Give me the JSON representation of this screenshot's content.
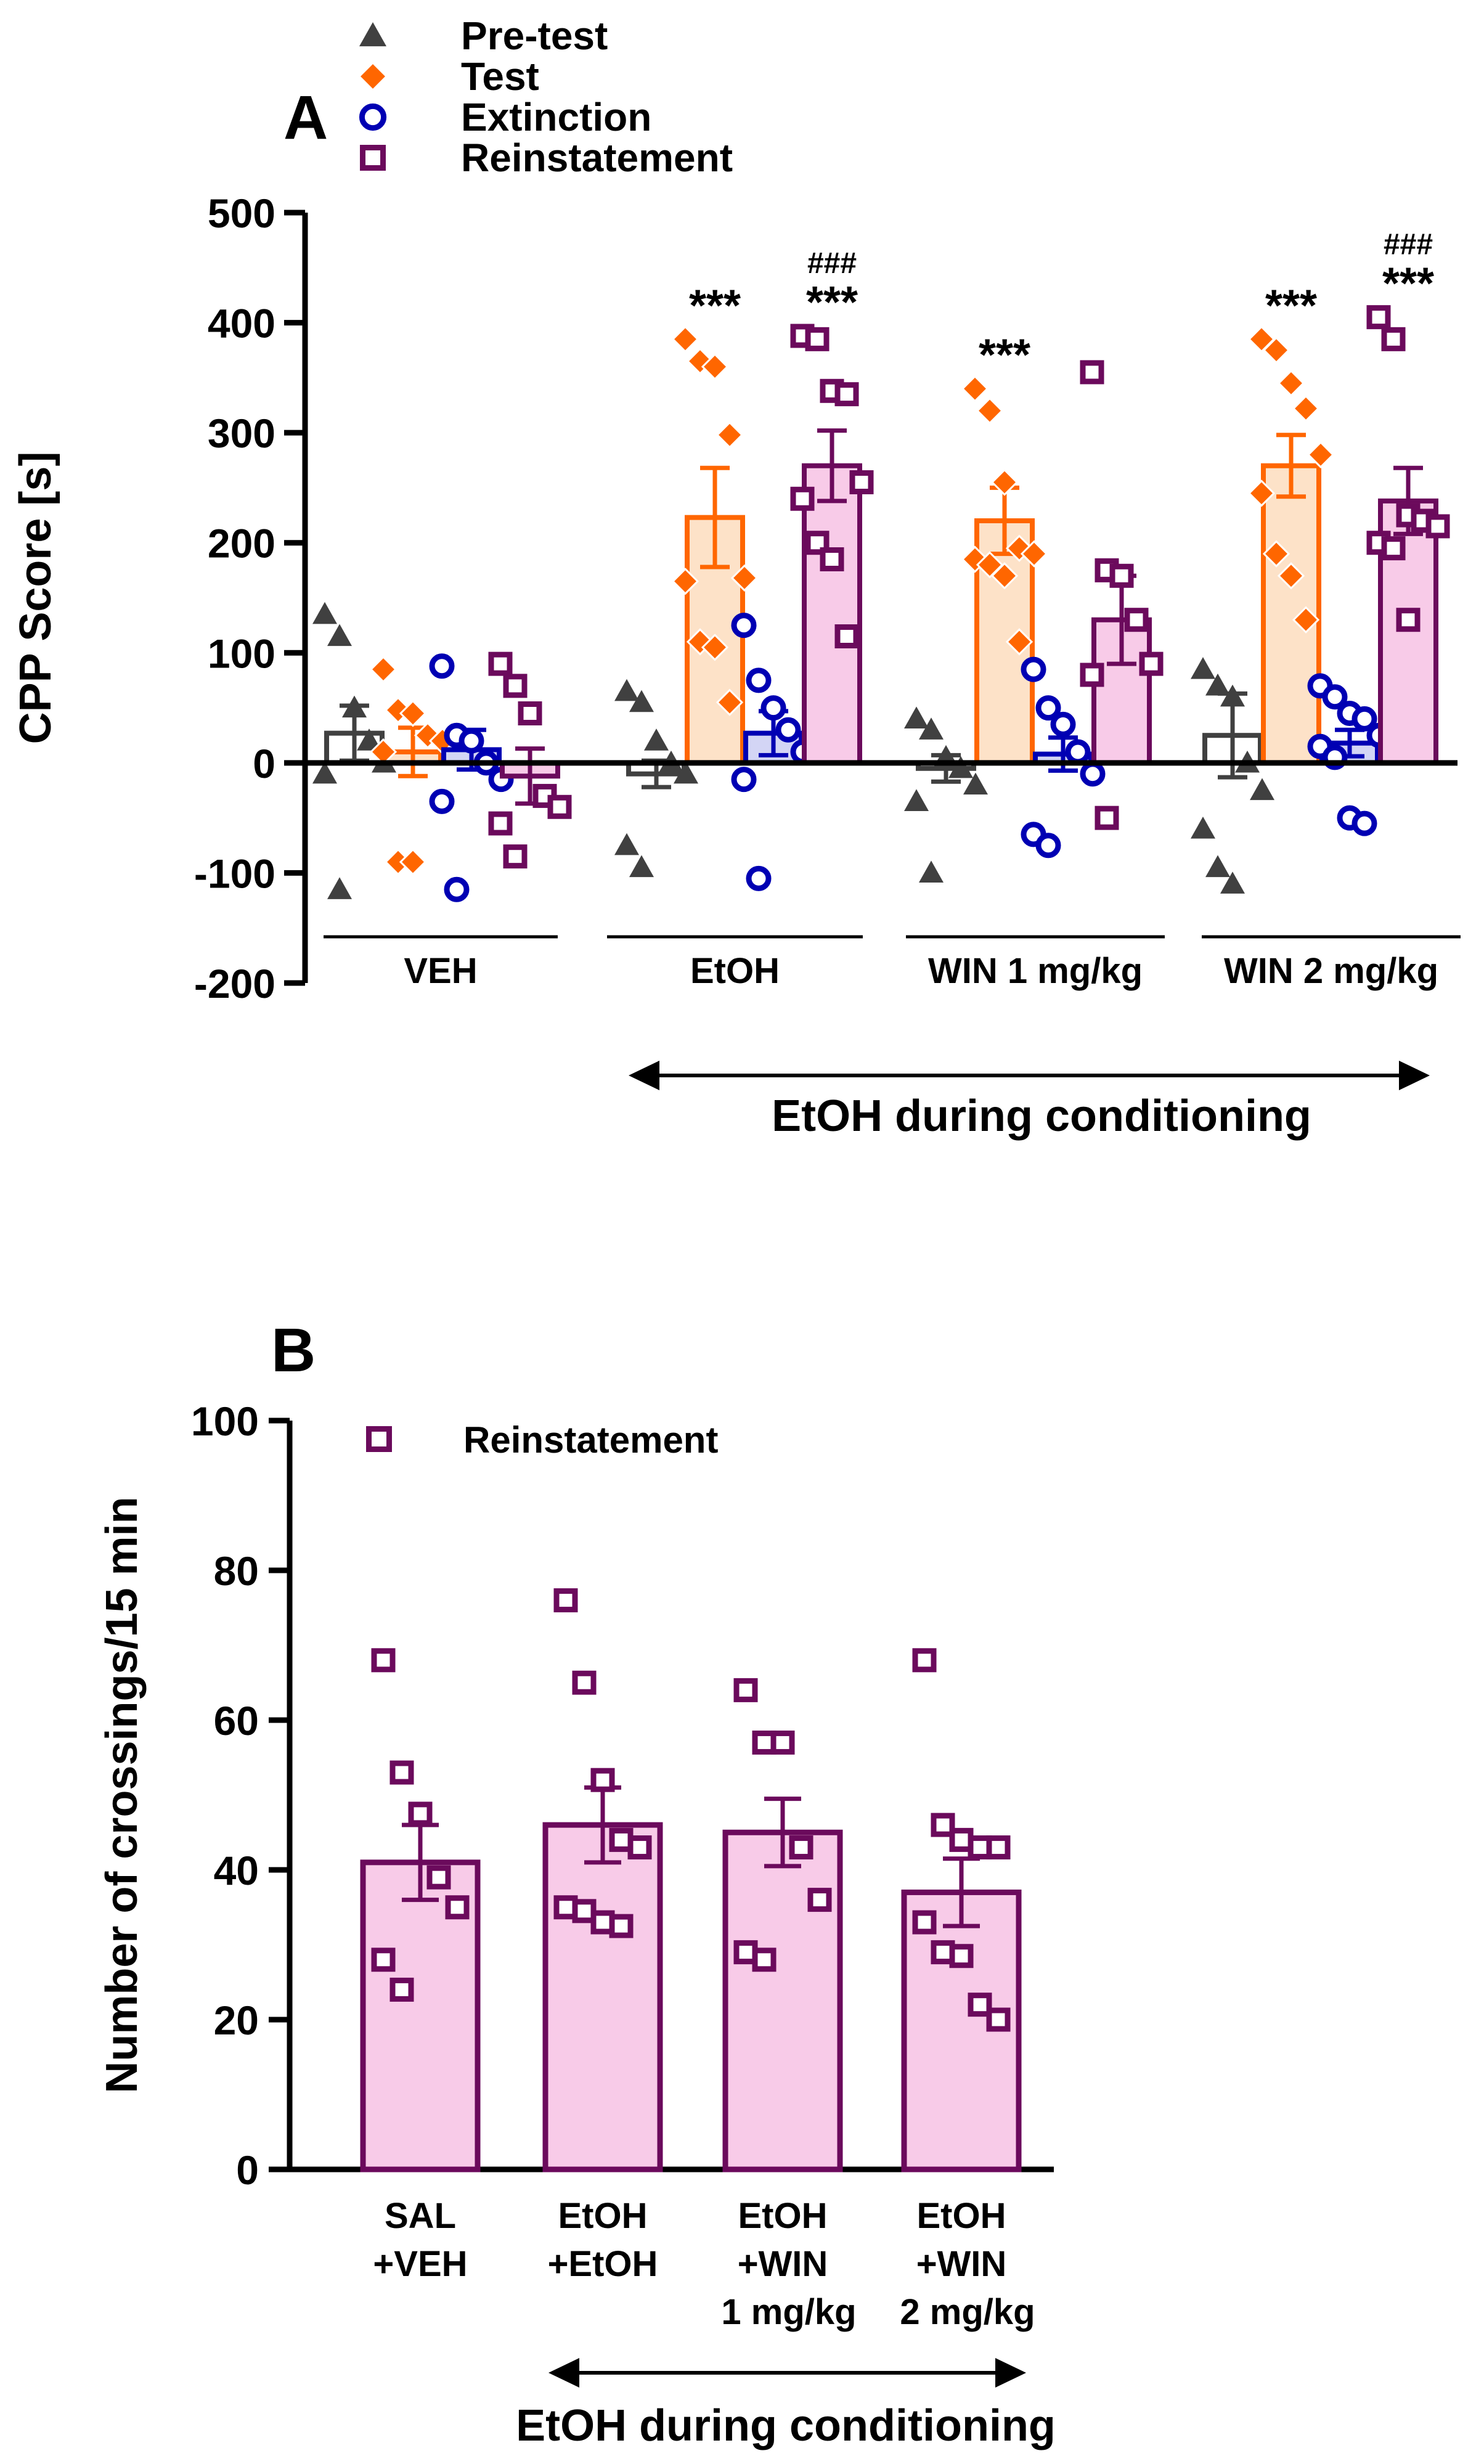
{
  "chart_data": [
    {
      "type": "bar",
      "panel_label": "A",
      "title": "",
      "ylabel": "CPP Score [s]",
      "xlabel": "",
      "ylim": [
        -200,
        500
      ],
      "yticks": [
        "-200",
        "-100",
        "0",
        "100",
        "200",
        "300",
        "400",
        "500"
      ],
      "legend": [
        {
          "name": "Pre-test",
          "symbol": "triangle",
          "color": "#404040"
        },
        {
          "name": "Test",
          "symbol": "diamond",
          "color": "#ff6600"
        },
        {
          "name": "Extinction",
          "symbol": "circle",
          "color": "#0000b3"
        },
        {
          "name": "Reinstatement",
          "symbol": "square",
          "color": "#6b0a5c"
        }
      ],
      "categories": [
        "VEH",
        "EtOH",
        "WIN 1 mg/kg",
        "WIN 2 mg/kg"
      ],
      "series": [
        {
          "name": "Pre-test",
          "color": "#404040",
          "fill": "#ffffff",
          "means": [
            27,
            -10,
            -5,
            25
          ],
          "sems": [
            25,
            12,
            12,
            38
          ],
          "points": [
            [
              135,
              115,
              50,
              20,
              0,
              -10,
              -115
            ],
            [
              65,
              55,
              20,
              0,
              -10,
              -75,
              -95
            ],
            [
              40,
              30,
              5,
              -5,
              -20,
              -35,
              -100
            ],
            [
              85,
              70,
              60,
              0,
              -25,
              -60,
              -95,
              -110
            ]
          ]
        },
        {
          "name": "Test",
          "color": "#ff6600",
          "fill": "#fde2c8",
          "means": [
            10,
            223,
            220,
            270
          ],
          "sems": [
            22,
            45,
            30,
            28
          ],
          "points": [
            [
              85,
              48,
              45,
              25,
              20,
              10,
              -90,
              -90
            ],
            [
              385,
              365,
              360,
              298,
              168,
              165,
              110,
              105,
              55
            ],
            [
              340,
              320,
              255,
              195,
              190,
              185,
              180,
              170,
              110
            ],
            [
              385,
              375,
              345,
              322,
              280,
              245,
              190,
              170,
              130
            ]
          ]
        },
        {
          "name": "Extinction",
          "color": "#0000b3",
          "fill": "#d3d5f5",
          "means": [
            12,
            27,
            8,
            18
          ],
          "sems": [
            18,
            20,
            15,
            12
          ],
          "points": [
            [
              88,
              25,
              20,
              0,
              -15,
              -35,
              -115
            ],
            [
              125,
              75,
              50,
              30,
              10,
              -15,
              -105
            ],
            [
              85,
              50,
              35,
              10,
              -10,
              -65,
              -75
            ],
            [
              70,
              60,
              45,
              40,
              25,
              15,
              5,
              -50,
              -55
            ]
          ]
        },
        {
          "name": "Reinstatement",
          "color": "#6b0a5c",
          "fill": "#f8cbe8",
          "means": [
            -12,
            270,
            130,
            238
          ],
          "sems": [
            25,
            32,
            40,
            30
          ],
          "points": [
            [
              90,
              70,
              45,
              -30,
              -40,
              -55,
              -85
            ],
            [
              388,
              385,
              338,
              335,
              255,
              240,
              200,
              185,
              115
            ],
            [
              355,
              175,
              170,
              130,
              90,
              80,
              -50
            ],
            [
              405,
              385,
              225,
              220,
              215,
              200,
              195,
              130
            ]
          ]
        }
      ],
      "annotations": [
        {
          "group": 1,
          "series": 1,
          "text": "***"
        },
        {
          "group": 1,
          "series": 3,
          "text": "###"
        },
        {
          "group": 1,
          "series": 3,
          "text": "***"
        },
        {
          "group": 2,
          "series": 1,
          "text": "***"
        },
        {
          "group": 3,
          "series": 1,
          "text": "***"
        },
        {
          "group": 3,
          "series": 3,
          "text": "###"
        },
        {
          "group": 3,
          "series": 3,
          "text": "***"
        }
      ],
      "arrow_label": "EtOH during conditioning"
    },
    {
      "type": "bar",
      "panel_label": "B",
      "title": "",
      "ylabel": "Number of crossings/15 min",
      "xlabel": "",
      "ylim": [
        0,
        100
      ],
      "yticks": [
        "0",
        "20",
        "40",
        "60",
        "80",
        "100"
      ],
      "legend": [
        {
          "name": "Reinstatement",
          "symbol": "square",
          "color": "#6b0a5c"
        }
      ],
      "categories": [
        [
          "SAL",
          "+VEH"
        ],
        [
          "EtOH",
          "+EtOH"
        ],
        [
          "EtOH",
          "+WIN",
          "1 mg/kg"
        ],
        [
          "EtOH",
          "+WIN",
          "2 mg/kg"
        ]
      ],
      "series": [
        {
          "name": "Reinstatement",
          "color": "#6b0a5c",
          "fill": "#f8cbe8",
          "means": [
            41,
            46,
            45,
            37
          ],
          "sems": [
            5,
            5,
            4.5,
            4.5
          ],
          "points": [
            [
              68,
              53,
              47.5,
              39,
              35,
              28,
              24
            ],
            [
              76,
              65,
              52,
              44,
              43,
              35,
              34.5,
              33,
              32.5
            ],
            [
              64,
              57,
              57,
              43,
              36,
              29,
              28
            ],
            [
              68,
              46,
              44,
              43,
              43,
              33,
              29,
              28.5,
              22,
              20
            ]
          ]
        }
      ],
      "arrow_label": "EtOH during conditioning"
    }
  ]
}
